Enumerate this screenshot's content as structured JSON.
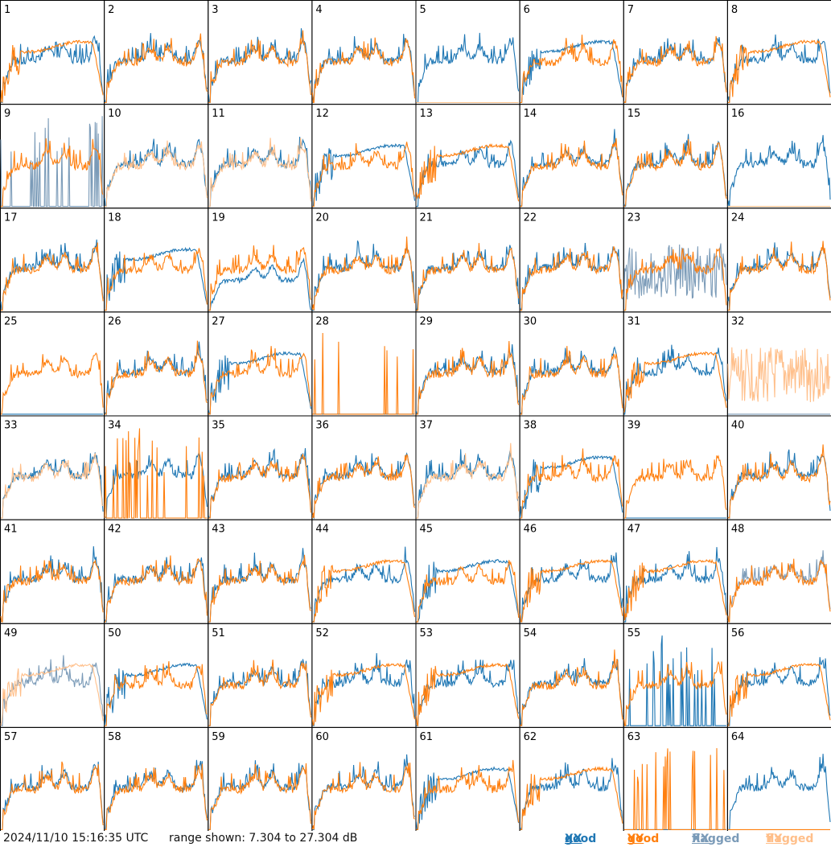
{
  "chart_data": {
    "type": "line",
    "timestamp": "2024/11/10 15:16:35 UTC",
    "range_text": "range shown: 7.304 to 27.304 dB",
    "ylim": [
      7.304,
      27.304
    ],
    "legend": [
      {
        "prefix": "good",
        "pol": "XX",
        "color": "#1f77b4"
      },
      {
        "prefix": "good",
        "pol": "YY",
        "color": "#ff7f0e"
      },
      {
        "prefix": "flagged",
        "pol": "XX",
        "color": "#7b9bb8"
      },
      {
        "prefix": "flagged",
        "pol": "YY",
        "color": "#ffbf8a"
      }
    ],
    "colors": {
      "good_xx": "#1f77b4",
      "good_yy": "#ff7f0e",
      "flagged_xx": "#7b9bb8",
      "flagged_yy": "#ffbf8a"
    },
    "tiles": [
      {
        "label": "1",
        "xx": "good",
        "yy": "good",
        "xx_shape": "normal",
        "yy_shape": "dropoff"
      },
      {
        "label": "2",
        "xx": "good",
        "yy": "good",
        "xx_shape": "normal",
        "yy_shape": "normal"
      },
      {
        "label": "3",
        "xx": "good",
        "yy": "good",
        "xx_shape": "normal",
        "yy_shape": "normal"
      },
      {
        "label": "4",
        "xx": "good",
        "yy": "good",
        "xx_shape": "normal",
        "yy_shape": "normal"
      },
      {
        "label": "5",
        "xx": "good",
        "yy": "flagged",
        "xx_shape": "normal",
        "yy_shape": "flat"
      },
      {
        "label": "6",
        "xx": "good",
        "yy": "good",
        "xx_shape": "dropoff",
        "yy_shape": "normal"
      },
      {
        "label": "7",
        "xx": "good",
        "yy": "good",
        "xx_shape": "normal",
        "yy_shape": "normal"
      },
      {
        "label": "8",
        "xx": "good",
        "yy": "good",
        "xx_shape": "normal",
        "yy_shape": "dropoff"
      },
      {
        "label": "9",
        "xx": "flagged",
        "yy": "good",
        "xx_shape": "spiky",
        "yy_shape": "normal"
      },
      {
        "label": "10",
        "xx": "good",
        "yy": "flagged",
        "xx_shape": "normal",
        "yy_shape": "normal"
      },
      {
        "label": "11",
        "xx": "good",
        "yy": "flagged",
        "xx_shape": "normal",
        "yy_shape": "normal"
      },
      {
        "label": "12",
        "xx": "good",
        "yy": "good",
        "xx_shape": "dropoff",
        "yy_shape": "normal"
      },
      {
        "label": "13",
        "xx": "good",
        "yy": "good",
        "xx_shape": "normal",
        "yy_shape": "dropoff"
      },
      {
        "label": "14",
        "xx": "good",
        "yy": "good",
        "xx_shape": "normal",
        "yy_shape": "normal"
      },
      {
        "label": "15",
        "xx": "good",
        "yy": "good",
        "xx_shape": "normal",
        "yy_shape": "normal"
      },
      {
        "label": "16",
        "xx": "good",
        "yy": "flagged",
        "xx_shape": "normal",
        "yy_shape": "flat"
      },
      {
        "label": "17",
        "xx": "good",
        "yy": "good",
        "xx_shape": "normal",
        "yy_shape": "normal"
      },
      {
        "label": "18",
        "xx": "good",
        "yy": "good",
        "xx_shape": "dropoff",
        "yy_shape": "normal"
      },
      {
        "label": "19",
        "xx": "good",
        "yy": "good",
        "xx_shape": "low",
        "yy_shape": "normal"
      },
      {
        "label": "20",
        "xx": "good",
        "yy": "good",
        "xx_shape": "normal",
        "yy_shape": "normal"
      },
      {
        "label": "21",
        "xx": "good",
        "yy": "good",
        "xx_shape": "normal",
        "yy_shape": "normal"
      },
      {
        "label": "22",
        "xx": "good",
        "yy": "good",
        "xx_shape": "normal",
        "yy_shape": "normal"
      },
      {
        "label": "23",
        "xx": "flagged",
        "yy": "good",
        "xx_shape": "noisy",
        "yy_shape": "normal"
      },
      {
        "label": "24",
        "xx": "good",
        "yy": "good",
        "xx_shape": "normal",
        "yy_shape": "normal"
      },
      {
        "label": "25",
        "xx": "good",
        "yy": "good",
        "xx_shape": "flat",
        "yy_shape": "normal"
      },
      {
        "label": "26",
        "xx": "good",
        "yy": "good",
        "xx_shape": "normal",
        "yy_shape": "normal"
      },
      {
        "label": "27",
        "xx": "good",
        "yy": "good",
        "xx_shape": "dropoff",
        "yy_shape": "normal"
      },
      {
        "label": "28",
        "xx": "good",
        "yy": "good",
        "xx_shape": "flat",
        "yy_shape": "spiky"
      },
      {
        "label": "29",
        "xx": "good",
        "yy": "good",
        "xx_shape": "normal",
        "yy_shape": "normal"
      },
      {
        "label": "30",
        "xx": "good",
        "yy": "good",
        "xx_shape": "normal",
        "yy_shape": "normal"
      },
      {
        "label": "31",
        "xx": "good",
        "yy": "good",
        "xx_shape": "normal",
        "yy_shape": "dropoff"
      },
      {
        "label": "32",
        "xx": "flagged",
        "yy": "flagged",
        "xx_shape": "flat",
        "yy_shape": "noisy"
      },
      {
        "label": "33",
        "xx": "good",
        "yy": "flagged",
        "xx_shape": "normal",
        "yy_shape": "normal"
      },
      {
        "label": "34",
        "xx": "good",
        "yy": "good",
        "xx_shape": "normal",
        "yy_shape": "spiky"
      },
      {
        "label": "35",
        "xx": "good",
        "yy": "good",
        "xx_shape": "normal",
        "yy_shape": "normal"
      },
      {
        "label": "36",
        "xx": "good",
        "yy": "good",
        "xx_shape": "normal",
        "yy_shape": "normal"
      },
      {
        "label": "37",
        "xx": "good",
        "yy": "flagged",
        "xx_shape": "normal",
        "yy_shape": "normal"
      },
      {
        "label": "38",
        "xx": "good",
        "yy": "good",
        "xx_shape": "dropoff",
        "yy_shape": "normal"
      },
      {
        "label": "39",
        "xx": "good",
        "yy": "good",
        "xx_shape": "flat",
        "yy_shape": "normal"
      },
      {
        "label": "40",
        "xx": "good",
        "yy": "good",
        "xx_shape": "normal",
        "yy_shape": "normal"
      },
      {
        "label": "41",
        "xx": "good",
        "yy": "good",
        "xx_shape": "normal",
        "yy_shape": "normal"
      },
      {
        "label": "42",
        "xx": "good",
        "yy": "good",
        "xx_shape": "normal",
        "yy_shape": "normal"
      },
      {
        "label": "43",
        "xx": "good",
        "yy": "good",
        "xx_shape": "normal",
        "yy_shape": "normal"
      },
      {
        "label": "44",
        "xx": "good",
        "yy": "good",
        "xx_shape": "normal",
        "yy_shape": "dropoff"
      },
      {
        "label": "45",
        "xx": "good",
        "yy": "good",
        "xx_shape": "dropoff",
        "yy_shape": "normal"
      },
      {
        "label": "46",
        "xx": "good",
        "yy": "good",
        "xx_shape": "normal",
        "yy_shape": "dropoff"
      },
      {
        "label": "47",
        "xx": "good",
        "yy": "good",
        "xx_shape": "normal",
        "yy_shape": "dropoff"
      },
      {
        "label": "48",
        "xx": "flagged",
        "yy": "good",
        "xx_shape": "normal",
        "yy_shape": "normal"
      },
      {
        "label": "49",
        "xx": "flagged",
        "yy": "flagged",
        "xx_shape": "normal",
        "yy_shape": "dropoff"
      },
      {
        "label": "50",
        "xx": "good",
        "yy": "good",
        "xx_shape": "dropoff",
        "yy_shape": "normal"
      },
      {
        "label": "51",
        "xx": "good",
        "yy": "good",
        "xx_shape": "normal",
        "yy_shape": "normal"
      },
      {
        "label": "52",
        "xx": "good",
        "yy": "good",
        "xx_shape": "normal",
        "yy_shape": "dropoff"
      },
      {
        "label": "53",
        "xx": "good",
        "yy": "good",
        "xx_shape": "normal",
        "yy_shape": "dropoff"
      },
      {
        "label": "54",
        "xx": "good",
        "yy": "good",
        "xx_shape": "normal",
        "yy_shape": "normal"
      },
      {
        "label": "55",
        "xx": "good",
        "yy": "good",
        "xx_shape": "spiky",
        "yy_shape": "normal"
      },
      {
        "label": "56",
        "xx": "good",
        "yy": "good",
        "xx_shape": "normal",
        "yy_shape": "dropoff"
      },
      {
        "label": "57",
        "xx": "good",
        "yy": "good",
        "xx_shape": "normal",
        "yy_shape": "normal"
      },
      {
        "label": "58",
        "xx": "good",
        "yy": "good",
        "xx_shape": "normal",
        "yy_shape": "normal"
      },
      {
        "label": "59",
        "xx": "good",
        "yy": "good",
        "xx_shape": "normal",
        "yy_shape": "normal"
      },
      {
        "label": "60",
        "xx": "good",
        "yy": "good",
        "xx_shape": "normal",
        "yy_shape": "normal"
      },
      {
        "label": "61",
        "xx": "good",
        "yy": "good",
        "xx_shape": "dropoff",
        "yy_shape": "normal"
      },
      {
        "label": "62",
        "xx": "good",
        "yy": "good",
        "xx_shape": "normal",
        "yy_shape": "dropoff"
      },
      {
        "label": "63",
        "xx": "good",
        "yy": "good",
        "xx_shape": "flat",
        "yy_shape": "spiky"
      },
      {
        "label": "64",
        "xx": "good",
        "yy": "good",
        "xx_shape": "normal",
        "yy_shape": "flat"
      }
    ]
  }
}
